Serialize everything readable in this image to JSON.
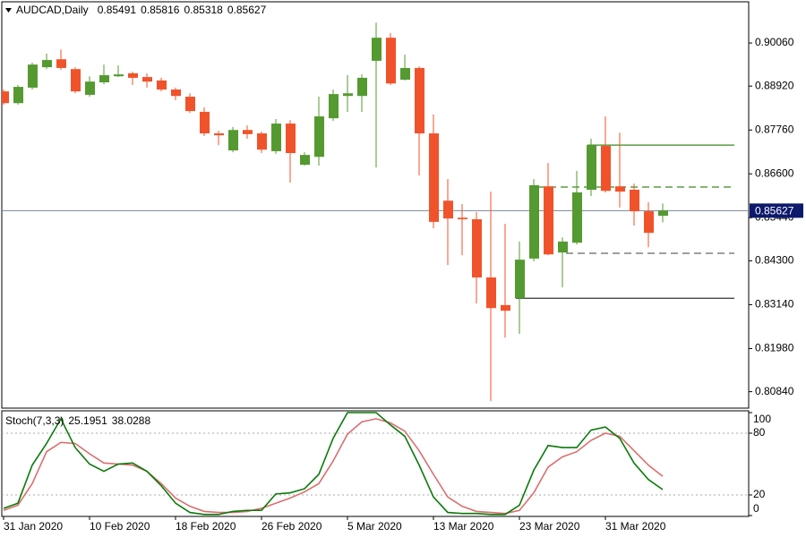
{
  "chart_data": [
    {
      "type": "candlestick",
      "title": "AUDCAD,Daily",
      "categories": [
        "31 Jan 2020",
        null,
        null,
        null,
        null,
        null,
        "10 Feb 2020",
        null,
        null,
        null,
        null,
        null,
        "18 Feb 2020",
        null,
        null,
        null,
        null,
        null,
        "26 Feb 2020",
        null,
        null,
        null,
        null,
        null,
        "5 Mar 2020",
        null,
        null,
        null,
        null,
        null,
        "13 Mar 2020",
        null,
        null,
        null,
        null,
        null,
        "23 Mar 2020",
        null,
        null,
        null,
        null,
        null,
        "31 Mar 2020",
        null,
        null,
        null,
        null
      ],
      "open": [
        0.8878,
        0.8847,
        0.8888,
        0.8942,
        0.8963,
        0.8937,
        0.8869,
        0.8902,
        0.8918,
        0.8926,
        0.8916,
        0.8907,
        0.8883,
        0.8864,
        0.8824,
        0.8767,
        0.8722,
        0.8776,
        0.8767,
        0.872,
        0.8793,
        0.8684,
        0.8705,
        0.8807,
        0.8866,
        0.8866,
        0.8959,
        0.902,
        0.8909,
        0.894,
        0.8767,
        0.8589,
        0.8544,
        0.854,
        0.8386,
        0.8313,
        0.8331,
        0.8436,
        0.8627,
        0.8452,
        0.8478,
        0.8618,
        0.8734,
        0.8627,
        0.8618,
        0.8561,
        0.85491
      ],
      "high": [
        0.8883,
        0.8895,
        0.8954,
        0.8978,
        0.8989,
        0.8942,
        0.8918,
        0.8949,
        0.8947,
        0.893,
        0.8926,
        0.8914,
        0.8888,
        0.8873,
        0.8836,
        0.8774,
        0.8784,
        0.8788,
        0.8772,
        0.8805,
        0.8802,
        0.8717,
        0.8864,
        0.8883,
        0.8921,
        0.8923,
        0.906,
        0.9032,
        0.8975,
        0.8944,
        0.8817,
        0.8646,
        0.858,
        0.8559,
        0.8613,
        0.8528,
        0.8481,
        0.8646,
        0.8689,
        0.8492,
        0.8668,
        0.8753,
        0.8812,
        0.8769,
        0.8634,
        0.8585,
        0.85816
      ],
      "low": [
        0.8843,
        0.8843,
        0.8883,
        0.8937,
        0.8935,
        0.8873,
        0.8864,
        0.8897,
        0.8916,
        0.8895,
        0.8888,
        0.8878,
        0.8855,
        0.8821,
        0.876,
        0.8736,
        0.8717,
        0.8753,
        0.8715,
        0.8713,
        0.8637,
        0.8682,
        0.8682,
        0.88,
        0.8824,
        0.8824,
        0.8677,
        0.8895,
        0.8907,
        0.8656,
        0.8516,
        0.8419,
        0.8445,
        0.8317,
        0.8059,
        0.8227,
        0.8237,
        0.8429,
        0.8445,
        0.836,
        0.8473,
        0.8601,
        0.8611,
        0.8571,
        0.8523,
        0.8466,
        0.85318
      ],
      "close": [
        0.8847,
        0.889,
        0.8949,
        0.8961,
        0.894,
        0.8878,
        0.8904,
        0.8921,
        0.8923,
        0.8914,
        0.8904,
        0.8883,
        0.8866,
        0.8826,
        0.8767,
        0.8762,
        0.8776,
        0.8765,
        0.8724,
        0.8793,
        0.8715,
        0.871,
        0.8812,
        0.8871,
        0.8873,
        0.8914,
        0.902,
        0.8899,
        0.894,
        0.8767,
        0.8533,
        0.8542,
        0.854,
        0.8386,
        0.8305,
        0.8298,
        0.8433,
        0.863,
        0.8447,
        0.8481,
        0.8611,
        0.8736,
        0.8615,
        0.8613,
        0.8561,
        0.8504,
        0.85627
      ],
      "up_color": "#549a30",
      "down_color": "#f0532b",
      "ylim": [
        0.80405,
        0.9115
      ],
      "yticks": [
        {
          "value": 0.8084,
          "label": "0.80840"
        },
        {
          "value": 0.8198,
          "label": "0.81980"
        },
        {
          "value": 0.8314,
          "label": "0.83140"
        },
        {
          "value": 0.843,
          "label": "0.84300"
        },
        {
          "value": 0.8544,
          "label": "0.85440"
        },
        {
          "value": 0.866,
          "label": "0.86600"
        },
        {
          "value": 0.8776,
          "label": "0.87760"
        },
        {
          "value": 0.8892,
          "label": "0.88920"
        },
        {
          "value": 0.9006,
          "label": "0.90060"
        }
      ],
      "levels": [
        {
          "value": 0.8736,
          "color": "#3a8a1c",
          "style": "solid"
        },
        {
          "value": 0.8625,
          "color": "#3a8a1c",
          "style": "dashed"
        },
        {
          "value": 0.845,
          "color": "#666666",
          "style": "dashed"
        },
        {
          "value": 0.8331,
          "color": "#333333",
          "style": "solid"
        }
      ]
    },
    {
      "type": "line",
      "title": "Stoch(7,3,3)",
      "series": [
        {
          "color": "#0a7a0a",
          "values": [
            7,
            12,
            49,
            70,
            94,
            66,
            50,
            43,
            50,
            51,
            43,
            29,
            12,
            3,
            1,
            1,
            4,
            5,
            5,
            21,
            22,
            26,
            40,
            75,
            100,
            100,
            100,
            88,
            77,
            49,
            18,
            3,
            2,
            2,
            1,
            1,
            10,
            44,
            68,
            66,
            66,
            83,
            86,
            75,
            51,
            35,
            25.1951
          ]
        },
        {
          "color": "#d9706f",
          "values": [
            5,
            10,
            31,
            62,
            71,
            70,
            60,
            51,
            50,
            49,
            43,
            31,
            17,
            9,
            4,
            3,
            3,
            4,
            7,
            12,
            17,
            23,
            31,
            53,
            79,
            91,
            94,
            90,
            82,
            63,
            40,
            18,
            9,
            4,
            3,
            2,
            5,
            22,
            47,
            57,
            62,
            73,
            80,
            77,
            63,
            49,
            38.0288
          ]
        }
      ],
      "ylim": [
        0,
        100
      ],
      "yticks": [
        0,
        20,
        80,
        100
      ]
    }
  ]
}
